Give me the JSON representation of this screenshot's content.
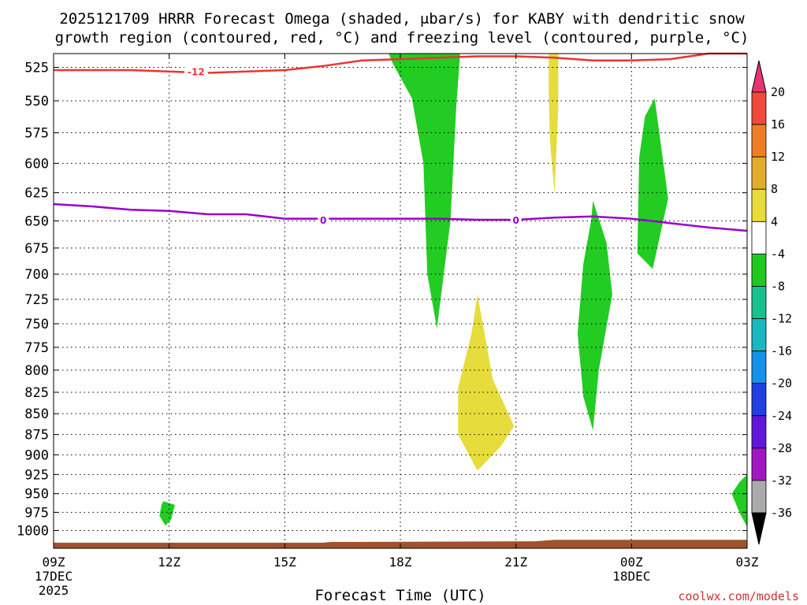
{
  "chart_data": {
    "type": "contour",
    "title_line1": "2025121709 HRRR Forecast Omega (shaded, μbar/s) for KABY with dendritic snow",
    "title_line2": "growth region (contoured, red, °C) and freezing level (contoured, purple, °C)",
    "xlabel": "Forecast Time (UTC)",
    "credit": "coolwx.com/models",
    "x_hours_range": [
      0,
      18
    ],
    "x_ticks": [
      {
        "hour": 0,
        "label": "09Z",
        "sub1": "17DEC",
        "sub2": "2025"
      },
      {
        "hour": 3,
        "label": "12Z",
        "sub1": "",
        "sub2": ""
      },
      {
        "hour": 6,
        "label": "15Z",
        "sub1": "",
        "sub2": ""
      },
      {
        "hour": 9,
        "label": "18Z",
        "sub1": "",
        "sub2": ""
      },
      {
        "hour": 12,
        "label": "21Z",
        "sub1": "",
        "sub2": ""
      },
      {
        "hour": 15,
        "label": "00Z",
        "sub1": "18DEC",
        "sub2": ""
      },
      {
        "hour": 18,
        "label": "03Z",
        "sub1": "",
        "sub2": ""
      }
    ],
    "y_pressure_range_hPa": [
      515,
      1025
    ],
    "y_ticks": [
      525,
      550,
      575,
      600,
      625,
      650,
      675,
      700,
      725,
      750,
      775,
      800,
      825,
      850,
      875,
      900,
      925,
      950,
      975,
      1000
    ],
    "colorbar": {
      "labels": [
        "20",
        "16",
        "12",
        "8",
        "4",
        "-4",
        "-8",
        "-12",
        "-16",
        "-20",
        "-24",
        "-28",
        "-32",
        "-36"
      ],
      "colors": [
        "#e8356f",
        "#f04a3a",
        "#ec7e2a",
        "#e3ab2d",
        "#e8dc3a",
        "#ffffff",
        "#20c820",
        "#18c090",
        "#18b8c0",
        "#1890e8",
        "#2040e0",
        "#6018d8",
        "#a018c0",
        "#aaaaaa",
        "#000000"
      ]
    },
    "omega_regions": [
      {
        "name": "green-plume-18z",
        "value_class": "-4 to -8",
        "color": "#22cc22",
        "points": [
          [
            8.7,
            515
          ],
          [
            10.55,
            515
          ],
          [
            10.45,
            555
          ],
          [
            10.3,
            650
          ],
          [
            9.95,
            755
          ],
          [
            9.7,
            700
          ],
          [
            9.6,
            600
          ],
          [
            9.3,
            548
          ],
          [
            8.8,
            522
          ]
        ]
      },
      {
        "name": "yellow-column-22z",
        "value_class": "4 to 8",
        "color": "#e6dc3c",
        "points": [
          [
            12.85,
            515
          ],
          [
            13.1,
            515
          ],
          [
            13.1,
            555
          ],
          [
            13.0,
            625
          ],
          [
            12.88,
            580
          ],
          [
            12.85,
            540
          ]
        ]
      },
      {
        "name": "green-column-01z",
        "value_class": "-4 to -8",
        "color": "#22cc22",
        "points": [
          [
            15.6,
            548
          ],
          [
            15.95,
            630
          ],
          [
            15.55,
            695
          ],
          [
            15.15,
            680
          ],
          [
            15.2,
            595
          ],
          [
            15.35,
            562
          ]
        ]
      },
      {
        "name": "green-column-23z",
        "value_class": "-4 to -8",
        "color": "#22cc22",
        "points": [
          [
            14.0,
            632
          ],
          [
            14.35,
            670
          ],
          [
            14.5,
            720
          ],
          [
            14.15,
            800
          ],
          [
            14.0,
            870
          ],
          [
            13.75,
            830
          ],
          [
            13.6,
            760
          ],
          [
            13.75,
            690
          ],
          [
            13.95,
            650
          ]
        ]
      },
      {
        "name": "yellow-blob-20z",
        "value_class": "4 to 8",
        "color": "#e6dc3c",
        "points": [
          [
            11.0,
            720
          ],
          [
            11.4,
            810
          ],
          [
            11.95,
            865
          ],
          [
            11.6,
            890
          ],
          [
            11.0,
            920
          ],
          [
            10.5,
            875
          ],
          [
            10.5,
            820
          ],
          [
            10.85,
            760
          ]
        ]
      },
      {
        "name": "green-blob-12z",
        "value_class": "-4 to -8",
        "color": "#22cc22",
        "points": [
          [
            2.85,
            960
          ],
          [
            3.15,
            965
          ],
          [
            3.05,
            985
          ],
          [
            2.9,
            993
          ],
          [
            2.75,
            980
          ],
          [
            2.8,
            965
          ]
        ]
      },
      {
        "name": "green-blob-03z",
        "value_class": "-4 to -8",
        "color": "#22cc22",
        "points": [
          [
            18.0,
            925
          ],
          [
            18.0,
            995
          ],
          [
            17.8,
            975
          ],
          [
            17.6,
            950
          ],
          [
            17.8,
            935
          ]
        ]
      }
    ],
    "snow_growth_contour": {
      "label": "-12",
      "color": "#ee3333",
      "points": [
        [
          0,
          527
        ],
        [
          2,
          527
        ],
        [
          4,
          529
        ],
        [
          6,
          527
        ],
        [
          7,
          524
        ],
        [
          8,
          520
        ],
        [
          9,
          519
        ],
        [
          10,
          518
        ],
        [
          11,
          517
        ],
        [
          12,
          517
        ],
        [
          13,
          518
        ],
        [
          14,
          520
        ],
        [
          15,
          520
        ],
        [
          16,
          519
        ],
        [
          17,
          515
        ],
        [
          18,
          515
        ]
      ],
      "label_at": [
        3.7,
        528
      ]
    },
    "freezing_level_contour": {
      "labels": [
        "0",
        "0"
      ],
      "color": "#9900cc",
      "points": [
        [
          0,
          635
        ],
        [
          1,
          637
        ],
        [
          2,
          640
        ],
        [
          3,
          641
        ],
        [
          4,
          644
        ],
        [
          5,
          644
        ],
        [
          6,
          648
        ],
        [
          7,
          648
        ],
        [
          8,
          648
        ],
        [
          9,
          648
        ],
        [
          10,
          648
        ],
        [
          11,
          649
        ],
        [
          12,
          649
        ],
        [
          13,
          647
        ],
        [
          14,
          646
        ],
        [
          15,
          648
        ],
        [
          16,
          652
        ],
        [
          17,
          656
        ],
        [
          18,
          659
        ]
      ],
      "label_at": [
        [
          7,
          649
        ],
        [
          12,
          649
        ]
      ]
    },
    "terrain": {
      "color": "#a0522d",
      "surface_pressure_hPa": [
        [
          0,
          1017
        ],
        [
          7,
          1017
        ],
        [
          7.2,
          1016
        ],
        [
          12.5,
          1015
        ],
        [
          13,
          1013
        ],
        [
          18,
          1013
        ]
      ]
    }
  }
}
